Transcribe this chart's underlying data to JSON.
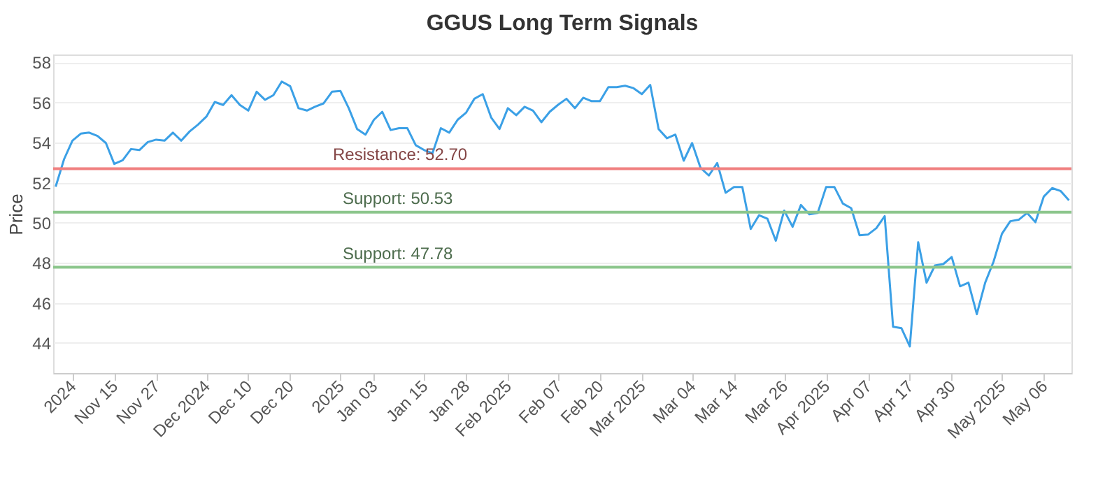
{
  "chart_data": {
    "type": "line",
    "title": "GGUS Long Term Signals",
    "ylabel": "Price",
    "categories": [
      null,
      null,
      "2024",
      null,
      null,
      null,
      null,
      "Nov 15",
      null,
      null,
      null,
      null,
      "Nov 27",
      null,
      null,
      null,
      null,
      null,
      "Dec 2024",
      null,
      null,
      null,
      null,
      "Dec 10",
      null,
      null,
      null,
      null,
      "Dec 20",
      null,
      null,
      null,
      null,
      null,
      "2025",
      null,
      null,
      null,
      "Jan 03",
      null,
      null,
      null,
      null,
      null,
      "Jan 15",
      null,
      null,
      null,
      null,
      "Jan 28",
      null,
      null,
      null,
      null,
      "Feb 2025",
      null,
      null,
      null,
      null,
      null,
      "Feb 07",
      null,
      null,
      null,
      null,
      "Feb 20",
      null,
      null,
      null,
      null,
      "Mar 2025",
      null,
      null,
      null,
      null,
      null,
      "Mar 04",
      null,
      null,
      null,
      null,
      "Mar 14",
      null,
      null,
      null,
      null,
      null,
      "Mar 26",
      null,
      null,
      null,
      null,
      "Apr 2025",
      null,
      null,
      null,
      null,
      "Apr 07",
      null,
      null,
      null,
      null,
      "Apr 17",
      null,
      null,
      null,
      null,
      "Apr 30",
      null,
      null,
      null,
      null,
      null,
      "May 2025",
      null,
      null,
      null,
      null,
      "May 06",
      null,
      null,
      null
    ],
    "series": [
      {
        "color": "#3ba0e6",
        "values": [
          51.8,
          53.17,
          54.1,
          54.45,
          54.5,
          54.33,
          53.98,
          52.94,
          53.12,
          53.68,
          53.63,
          54.03,
          54.15,
          54.1,
          54.5,
          54.1,
          54.56,
          54.9,
          55.3,
          56.03,
          55.88,
          56.37,
          55.88,
          55.6,
          56.54,
          56.14,
          56.37,
          57.05,
          56.82,
          55.72,
          55.6,
          55.8,
          55.96,
          56.54,
          56.58,
          55.72,
          54.68,
          54.4,
          55.14,
          55.54,
          54.63,
          54.72,
          54.72,
          53.87,
          53.63,
          53.47,
          54.72,
          54.5,
          55.14,
          55.49,
          56.19,
          56.42,
          55.26,
          54.68,
          55.72,
          55.37,
          55.79,
          55.6,
          55.02,
          55.54,
          55.89,
          56.19,
          55.72,
          56.24,
          56.07,
          56.07,
          56.77,
          56.77,
          56.84,
          56.72,
          56.42,
          56.88,
          54.68,
          54.22,
          54.4,
          53.1,
          53.98,
          52.75,
          52.36,
          52.98,
          51.5,
          51.78,
          51.78,
          49.69,
          50.38,
          50.2,
          49.1,
          50.61,
          49.8,
          50.89,
          50.42,
          50.49,
          51.78,
          51.78,
          50.96,
          50.73,
          49.38,
          49.41,
          49.73,
          50.33,
          44.81,
          44.74,
          43.83,
          49.03,
          47.01,
          47.87,
          47.94,
          48.29,
          46.83,
          47.01,
          45.44,
          47.01,
          48.06,
          49.45,
          50.08,
          50.15,
          50.49,
          50.03,
          51.31,
          51.73,
          51.59,
          51.12
        ]
      }
    ],
    "ylim": [
      42.5,
      58.4
    ],
    "yticks": [
      44,
      46,
      48,
      50,
      52,
      54,
      56,
      58
    ],
    "grid": "y",
    "line_style": "solid",
    "marker": "none",
    "ref_lines": [
      {
        "axis": "y",
        "value": 52.7,
        "label": "Resistance: 52.70",
        "color": "#f08080"
      },
      {
        "axis": "y",
        "value": 50.53,
        "label": "Support: 50.53",
        "color": "#8cc68c"
      },
      {
        "axis": "y",
        "value": 47.78,
        "label": "Support: 47.78",
        "color": "#8cc68c"
      }
    ]
  }
}
